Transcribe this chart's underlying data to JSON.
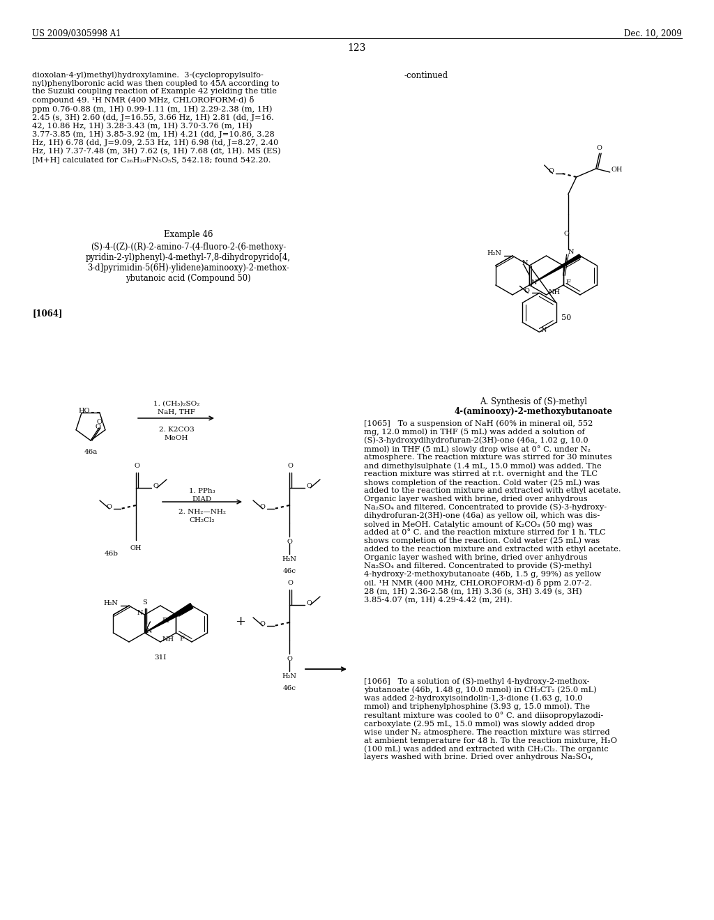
{
  "bg": "#ffffff",
  "header_left": "US 2009/0305998 A1",
  "header_right": "Dec. 10, 2009",
  "page_num": "123",
  "continued": "-continued",
  "para1": "dioxolan-4-yl)methyl)hydroxylamine.  3-(cyclopropylsulfo-\nnyl)phenylboronic acid was then coupled to 45A according to\nthe Suzuki coupling reaction of Example 42 yielding the title\ncompound 49. ¹H NMR (400 MHz, CHLOROFORM-d) δ\nppm 0.76-0.88 (m, 1H) 0.99-1.11 (m, 1H) 2.29-2.38 (m, 1H)\n2.45 (s, 3H) 2.60 (dd, J=16.55, 3.66 Hz, 1H) 2.81 (dd, J=16.\n42, 10.86 Hz, 1H) 3.28-3.43 (m, 1H) 3.70-3.76 (m, 1H)\n3.77-3.85 (m, 1H) 3.85-3.92 (m, 1H) 4.21 (dd, J=10.86, 3.28\nHz, 1H) 6.78 (dd, J=9.09, 2.53 Hz, 1H) 6.98 (td, J=8.27, 2.40\nHz, 1H) 7.37-7.48 (m, 3H) 7.62 (s, 1H) 7.68 (dt, 1H). MS (ES)\n[M+H] calculated for C₂₆H₂₉FN₅O₅S, 542.18; found 542.20.",
  "example46": "Example 46",
  "compound_title": "(S)-4-((Z)-((R)-2-amino-7-(4-fluoro-2-(6-methoxy-\npyridin-2-yl)phenyl)-4-methyl-7,8-dihydropyrido[4,\n3-d]pyrimidin-5(6H)-ylidene)aminooxy)-2-methox-\nybutanoic acid (Compound 50)",
  "ref1064": "[1064]",
  "synth_title1": "A. Synthesis of (S)-methyl",
  "synth_title2": "4-(aminooxy)-2-methoxybutanoate",
  "p1065": "[1065]   To a suspension of NaH (60% in mineral oil, 552\nmg, 12.0 mmol) in THF (5 mL) was added a solution of\n(S)-3-hydroxydihydrofuran-2(3H)-one (46a, 1.02 g, 10.0\nmmol) in THF (5 mL) slowly drop wise at 0° C. under N₂\natmosphere. The reaction mixture was stirred for 30 minutes\nand dimethylsulphate (1.4 mL, 15.0 mmol) was added. The\nreaction mixture was stirred at r.t. overnight and the TLC\nshows completion of the reaction. Cold water (25 mL) was\nadded to the reaction mixture and extracted with ethyl acetate.\nOrganic layer washed with brine, dried over anhydrous\nNa₂SO₄ and filtered. Concentrated to provide (S)-3-hydroxy-\ndihydrofuran-2(3H)-one (46a) as yellow oil, which was dis-\nsolved in MeOH. Catalytic amount of K₂CO₃ (50 mg) was\nadded at 0° C. and the reaction mixture stirred for 1 h. TLC\nshows completion of the reaction. Cold water (25 mL) was\nadded to the reaction mixture and extracted with ethyl acetate.\nOrganic layer washed with brine, dried over anhydrous\nNa₂SO₄ and filtered. Concentrated to provide (S)-methyl\n4-hydroxy-2-methoxybutanoate (46b, 1.5 g, 99%) as yellow\noil. ¹H NMR (400 MHz, CHLOROFORM-d) δ ppm 2.07-2.\n28 (m, 1H) 2.36-2.58 (m, 1H) 3.36 (s, 3H) 3.49 (s, 3H)\n3.85-4.07 (m, 1H) 4.29-4.42 (m, 2H).",
  "p1066": "[1066]   To a solution of (S)-methyl 4-hydroxy-2-methox-\nybutanoate (46b, 1.48 g, 10.0 mmol) in CH₂CT₂ (25.0 mL)\nwas added 2-hydroxyisoindolin-1,3-dione (1.63 g, 10.0\nmmol) and triphenylphosphine (3.93 g, 15.0 mmol). The\nresultant mixture was cooled to 0° C. and diisopropylazodi-\ncarboxylate (2.95 mL, 15.0 mmol) was slowly added drop\nwise under N₂ atmosphere. The reaction mixture was stirred\nat ambient temperature for 48 h. To the reaction mixture, H₂O\n(100 mL) was added and extracted with CH₂Cl₂. The organic\nlayers washed with brine. Dried over anhydrous Na₂SO₄,"
}
